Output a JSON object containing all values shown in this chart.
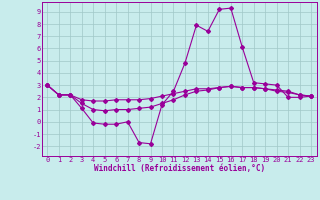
{
  "xlabel": "Windchill (Refroidissement éolien,°C)",
  "background_color": "#c8ecec",
  "grid_color": "#a0c8c8",
  "line_color": "#990099",
  "x_ticks": [
    0,
    1,
    2,
    3,
    4,
    5,
    6,
    7,
    8,
    9,
    10,
    11,
    12,
    13,
    14,
    15,
    16,
    17,
    18,
    19,
    20,
    21,
    22,
    23
  ],
  "y_ticks": [
    -2,
    -1,
    0,
    1,
    2,
    3,
    4,
    5,
    6,
    7,
    8,
    9
  ],
  "xlim": [
    -0.5,
    23.5
  ],
  "ylim": [
    -2.8,
    9.8
  ],
  "line1": [
    3.0,
    2.2,
    2.2,
    1.1,
    -0.1,
    -0.2,
    -0.2,
    0.0,
    -1.7,
    -1.8,
    1.4,
    2.5,
    4.8,
    7.9,
    7.4,
    9.2,
    9.3,
    6.1,
    3.2,
    3.1,
    3.0,
    2.0,
    2.0,
    2.1
  ],
  "line2": [
    3.0,
    2.2,
    2.2,
    1.5,
    1.0,
    0.9,
    1.0,
    1.0,
    1.1,
    1.2,
    1.5,
    1.8,
    2.2,
    2.5,
    2.6,
    2.8,
    2.9,
    2.8,
    2.8,
    2.7,
    2.6,
    2.5,
    2.2,
    2.1
  ],
  "line3": [
    3.0,
    2.2,
    2.2,
    1.8,
    1.7,
    1.7,
    1.8,
    1.8,
    1.8,
    1.9,
    2.1,
    2.3,
    2.5,
    2.7,
    2.7,
    2.8,
    2.9,
    2.8,
    2.8,
    2.7,
    2.5,
    2.4,
    2.2,
    2.1
  ],
  "tick_fontsize": 5.0,
  "xlabel_fontsize": 5.5,
  "marker_size": 2.0,
  "linewidth": 0.8
}
